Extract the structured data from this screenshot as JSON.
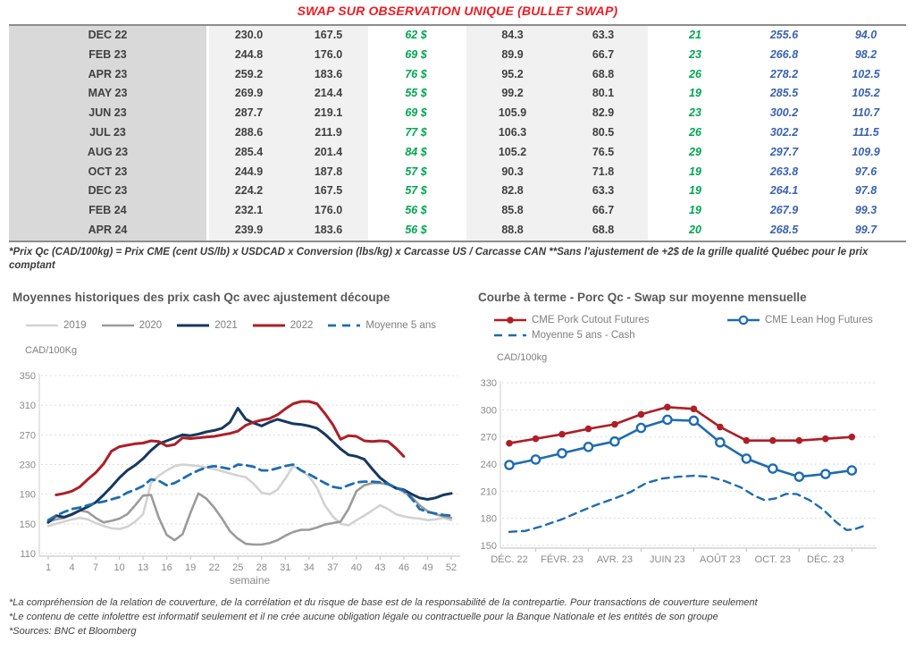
{
  "title": "SWAP SUR OBSERVATION UNIQUE (BULLET SWAP)",
  "table": {
    "rows": [
      [
        "DEC 22",
        "230.0",
        "167.5",
        "62 $",
        "84.3",
        "63.3",
        "21",
        "255.6",
        "94.0"
      ],
      [
        "FEB 23",
        "244.8",
        "176.0",
        "69 $",
        "89.9",
        "66.7",
        "23",
        "266.8",
        "98.2"
      ],
      [
        "APR 23",
        "259.2",
        "183.6",
        "76 $",
        "95.2",
        "68.8",
        "26",
        "278.2",
        "102.5"
      ],
      [
        "MAY 23",
        "269.9",
        "214.4",
        "55 $",
        "99.2",
        "80.1",
        "19",
        "285.5",
        "105.2"
      ],
      [
        "JUN 23",
        "287.7",
        "219.1",
        "69 $",
        "105.9",
        "82.9",
        "23",
        "300.2",
        "110.7"
      ],
      [
        "JUL 23",
        "288.6",
        "211.9",
        "77 $",
        "106.3",
        "80.5",
        "26",
        "302.2",
        "111.5"
      ],
      [
        "AUG 23",
        "285.4",
        "201.4",
        "84 $",
        "105.2",
        "76.5",
        "29",
        "297.7",
        "109.9"
      ],
      [
        "OCT 23",
        "244.9",
        "187.8",
        "57 $",
        "90.3",
        "71.8",
        "19",
        "263.8",
        "97.6"
      ],
      [
        "DEC 23",
        "224.2",
        "167.5",
        "57 $",
        "82.8",
        "63.3",
        "19",
        "264.1",
        "97.8"
      ],
      [
        "FEB 24",
        "232.1",
        "176.0",
        "56 $",
        "85.8",
        "66.7",
        "19",
        "267.9",
        "99.3"
      ],
      [
        "APR 24",
        "239.9",
        "183.6",
        "56 $",
        "88.8",
        "68.8",
        "20",
        "268.5",
        "99.7"
      ]
    ],
    "note": "*Prix Qc (CAD/100kg) = Prix CME (cent US/lb) x USDCAD x Conversion (lbs/kg) x Carcasse US / Carcasse CAN **Sans l'ajustement de +2$ de la grille qualité Québec pour le prix comptant"
  },
  "chart_data": [
    {
      "type": "line",
      "title": "Moyennes historiques des prix cash Qc avec ajustement découpe",
      "ylabel": "CAD/100Kg",
      "xlabel": "semaine",
      "ylim": [
        110,
        350
      ],
      "xlim": [
        1,
        52
      ],
      "yticks": [
        110,
        150,
        190,
        230,
        270,
        310,
        350
      ],
      "xlabels": [
        1,
        4,
        7,
        10,
        13,
        16,
        19,
        22,
        25,
        28,
        31,
        34,
        37,
        40,
        43,
        46,
        49,
        52
      ],
      "xtick_marks": [
        1,
        4,
        7,
        10,
        13,
        16,
        19,
        22,
        25,
        28,
        31,
        34,
        37,
        40,
        43,
        46,
        49,
        52
      ],
      "grid": "dashed-horizontal",
      "legend_rows": [
        [
          0,
          1,
          2,
          3,
          4
        ]
      ],
      "series": [
        {
          "name": "2019",
          "color": "#d2d2d2",
          "width": 2.6,
          "values": [
            147,
            150,
            153,
            156,
            158,
            156,
            151,
            147,
            144,
            143,
            146,
            153,
            163,
            205,
            215,
            222,
            228,
            230,
            229,
            228,
            226,
            224,
            221,
            218,
            215,
            213,
            204,
            192,
            190,
            196,
            211,
            228,
            222,
            214,
            199,
            175,
            160,
            150,
            148,
            155,
            161,
            168,
            175,
            170,
            163,
            160,
            158,
            157,
            155,
            156,
            158,
            155
          ]
        },
        {
          "name": "2020",
          "color": "#9b9b9b",
          "width": 2.6,
          "values": [
            153,
            156,
            158,
            162,
            168,
            166,
            158,
            152,
            154,
            157,
            163,
            175,
            188,
            189,
            158,
            135,
            128,
            136,
            165,
            191,
            184,
            172,
            157,
            140,
            130,
            123,
            122,
            122,
            124,
            128,
            134,
            139,
            142,
            142,
            145,
            149,
            151,
            153,
            170,
            194,
            202,
            205,
            205,
            203,
            199,
            193,
            186,
            175,
            167,
            163,
            160,
            158
          ]
        },
        {
          "name": "2021",
          "color": "#16385f",
          "width": 3,
          "values": [
            152,
            161,
            159,
            163,
            168,
            173,
            179,
            189,
            200,
            212,
            222,
            229,
            238,
            249,
            258,
            262,
            266,
            270,
            269,
            271,
            274,
            276,
            279,
            287,
            306,
            291,
            286,
            282,
            287,
            291,
            288,
            285,
            284,
            282,
            279,
            271,
            261,
            251,
            243,
            241,
            237,
            224,
            212,
            204,
            198,
            196,
            190,
            185,
            183,
            185,
            189,
            191
          ]
        },
        {
          "name": "2022",
          "color": "#ad1f26",
          "width": 3,
          "values": [
            null,
            189,
            191,
            194,
            200,
            210,
            219,
            231,
            248,
            254,
            256,
            258,
            259,
            262,
            261,
            255,
            257,
            266,
            265,
            266,
            267,
            268,
            270,
            272,
            275,
            283,
            287,
            290,
            292,
            297,
            305,
            312,
            315,
            315,
            312,
            299,
            284,
            264,
            269,
            268,
            262,
            261,
            262,
            261,
            252,
            241
          ]
        },
        {
          "name": "Moyenne 5 ans",
          "color": "#1e6cb0",
          "width": 2.8,
          "dash": "9 6",
          "values": [
            155,
            161,
            166,
            170,
            172,
            175,
            178,
            180,
            183,
            186,
            192,
            196,
            201,
            210,
            208,
            202,
            205,
            211,
            217,
            222,
            226,
            228,
            226,
            224,
            230,
            229,
            227,
            222,
            222,
            225,
            228,
            230,
            222,
            217,
            211,
            205,
            200,
            198,
            202,
            206,
            207,
            207,
            206,
            204,
            199,
            195,
            184,
            170,
            166,
            164,
            162,
            161
          ]
        }
      ]
    },
    {
      "type": "line",
      "title": "Courbe à terme - Porc Qc - Swap sur moyenne mensuelle",
      "ylabel": "CAD/100kg",
      "xlabel": "",
      "ylim": [
        150,
        330
      ],
      "xlim": [
        0,
        13.6
      ],
      "yticks": [
        150,
        180,
        210,
        240,
        270,
        300,
        330
      ],
      "xlabels": [
        {
          "x": 0,
          "label": "DÉC. 22"
        },
        {
          "x": 2,
          "label": "FÉVR. 23"
        },
        {
          "x": 4,
          "label": "AVR. 23"
        },
        {
          "x": 6,
          "label": "JUIN 23"
        },
        {
          "x": 8,
          "label": "AOÛT 23"
        },
        {
          "x": 10,
          "label": "OCT. 23"
        },
        {
          "x": 12,
          "label": "DÉC. 23"
        }
      ],
      "xtick_marks": [
        1,
        3,
        5,
        7,
        9,
        11,
        13
      ],
      "grid": "dashed-horizontal",
      "legend_rows": [
        [
          0,
          1
        ],
        [
          2
        ]
      ],
      "series": [
        {
          "name": "CME Pork Cutout Futures",
          "color": "#ad1f26",
          "width": 2.6,
          "marker": "filled-circle",
          "values": [
            263,
            268,
            273,
            279,
            284,
            295,
            303,
            301,
            281,
            266,
            266,
            266,
            268,
            270
          ]
        },
        {
          "name": "CME Lean Hog Futures",
          "color": "#1e6cb0",
          "width": 2.6,
          "marker": "open-circle",
          "values": [
            239,
            245,
            252,
            259,
            265,
            280,
            289,
            288,
            264,
            246,
            235,
            226,
            229,
            233
          ]
        },
        {
          "name": "Moyenne 5 ans - Cash",
          "color": "#1e6cb0",
          "width": 2.4,
          "dash": "8 6",
          "points": [
            [
              0,
              165
            ],
            [
              0.6,
              166
            ],
            [
              1.2,
              171
            ],
            [
              2,
              179
            ],
            [
              2.8,
              189
            ],
            [
              3.4,
              196
            ],
            [
              4,
              202
            ],
            [
              4.6,
              209
            ],
            [
              5.2,
              219
            ],
            [
              5.8,
              224
            ],
            [
              6.4,
              226
            ],
            [
              7,
              227
            ],
            [
              7.6,
              226
            ],
            [
              8.2,
              221
            ],
            [
              8.8,
              214
            ],
            [
              9.3,
              205
            ],
            [
              9.7,
              200
            ],
            [
              10.1,
              202
            ],
            [
              10.5,
              207
            ],
            [
              10.9,
              207
            ],
            [
              11.4,
              200
            ],
            [
              11.9,
              190
            ],
            [
              12.4,
              176
            ],
            [
              12.8,
              167
            ],
            [
              13.1,
              168
            ],
            [
              13.5,
              172
            ]
          ]
        }
      ]
    }
  ],
  "notes": [
    "*La compréhension de la relation de couverture, de la corrélation et du risque de base est de la responsabilité de la contrepartie. Pour transactions de couverture seulement",
    "*Le contenu de cette infolettre est informatif seulement et il ne crée aucune obligation légale ou contractuelle pour la Banque Nationale et les entités de son groupe",
    "*Sources: BNC et Bloomberg"
  ]
}
